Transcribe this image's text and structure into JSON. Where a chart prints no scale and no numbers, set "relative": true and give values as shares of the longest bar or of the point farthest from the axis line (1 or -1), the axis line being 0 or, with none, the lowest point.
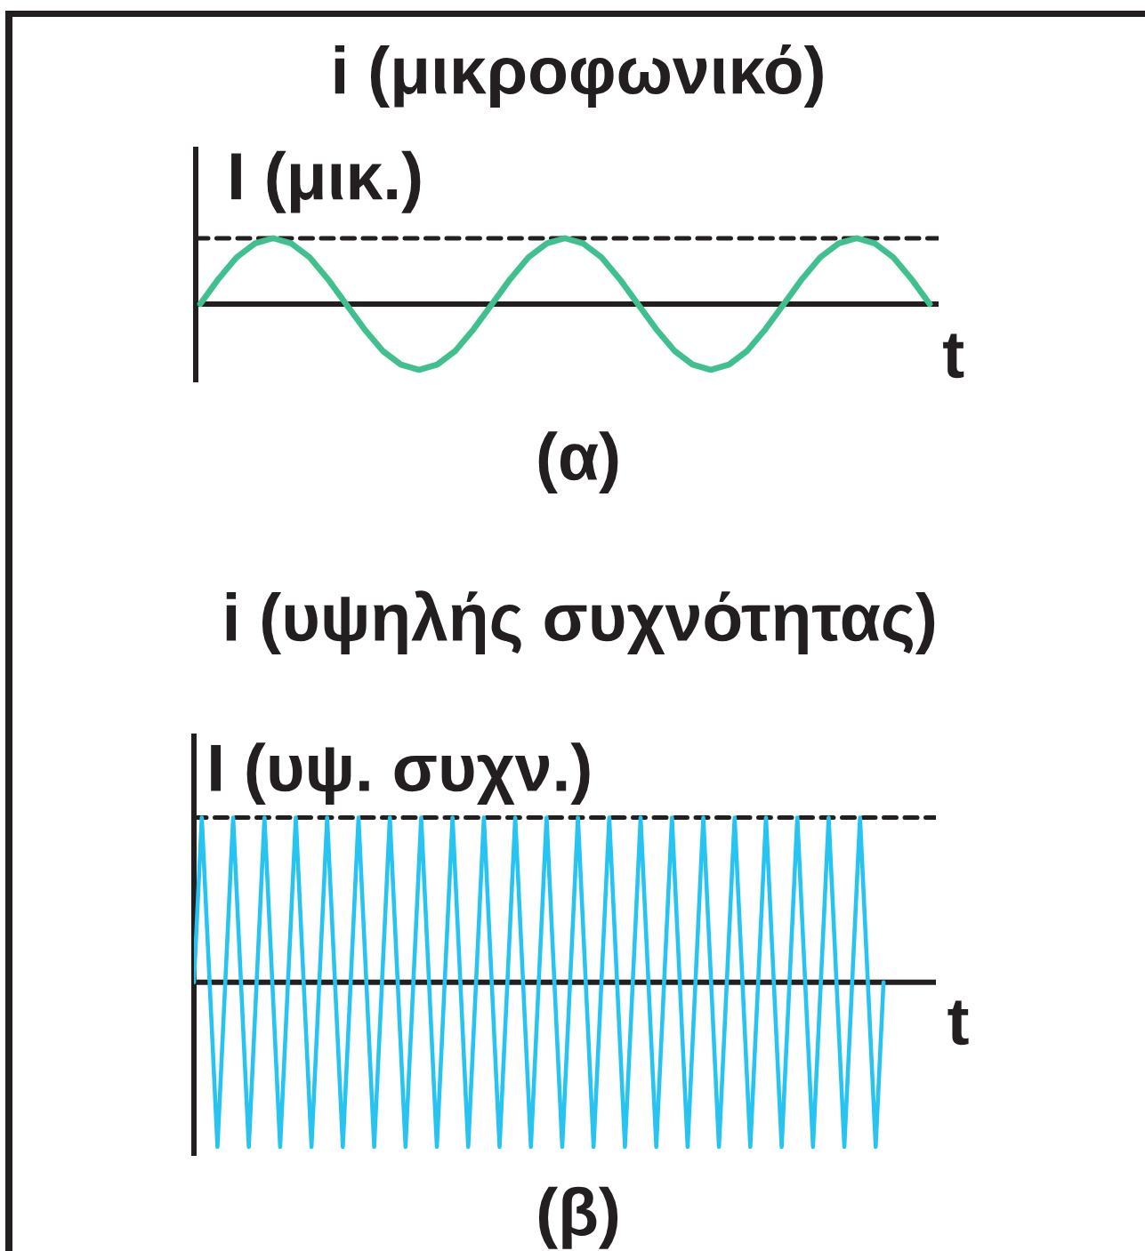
{
  "chart_data": [
    {
      "type": "line",
      "title": "i (μικροφωνικό)",
      "ylabel": "I (μικ.)",
      "xlabel": "t",
      "annotations": [
        "(α)"
      ],
      "relative": true,
      "categories": [
        null,
        null,
        null,
        null,
        null,
        null,
        null,
        null,
        null,
        null,
        null,
        null,
        null,
        null,
        null,
        null,
        null,
        null,
        null,
        null,
        null,
        null,
        null,
        null,
        null,
        null,
        null,
        null,
        null,
        null,
        null,
        null,
        null,
        null,
        null,
        null,
        null,
        null,
        null,
        null,
        null
      ],
      "series": [
        {
          "color": "#40bf8f",
          "values": [
            0,
            0.38,
            0.71,
            0.92,
            1,
            0.92,
            0.71,
            0.38,
            0,
            -0.38,
            -0.71,
            -0.92,
            -1,
            -0.92,
            -0.71,
            -0.38,
            0,
            0.38,
            0.71,
            0.92,
            1,
            0.92,
            0.71,
            0.38,
            0,
            -0.38,
            -0.71,
            -0.92,
            -1,
            -0.92,
            -0.71,
            -0.38,
            0,
            0.38,
            0.71,
            0.92,
            1,
            0.92,
            0.71,
            0.38,
            0
          ]
        }
      ],
      "ref_lines": [
        {
          "axis": "y",
          "value": 1,
          "color": "#231f20",
          "line_style": "dashed"
        }
      ]
    },
    {
      "type": "line",
      "title": "i (υψηλής συχνότητας)",
      "ylabel": "I (υψ. συχν.)",
      "xlabel": "t",
      "annotations": [
        "(β)"
      ],
      "relative": true,
      "categories": [
        null,
        null,
        null,
        null,
        null,
        null,
        null,
        null,
        null,
        null,
        null,
        null,
        null,
        null,
        null,
        null,
        null,
        null,
        null,
        null,
        null,
        null,
        null,
        null,
        null,
        null,
        null,
        null,
        null,
        null,
        null,
        null,
        null,
        null,
        null,
        null,
        null,
        null,
        null,
        null,
        null,
        null,
        null,
        null,
        null,
        null,
        null,
        null,
        null,
        null,
        null,
        null,
        null,
        null,
        null,
        null,
        null,
        null,
        null,
        null,
        null,
        null,
        null,
        null,
        null,
        null,
        null,
        null,
        null,
        null,
        null,
        null,
        null,
        null,
        null,
        null,
        null,
        null,
        null,
        null,
        null,
        null,
        null,
        null,
        null,
        null,
        null,
        null,
        null
      ],
      "series": [
        {
          "color": "#27c4f2",
          "values": [
            0,
            1,
            0,
            -1,
            0,
            1,
            0,
            -1,
            0,
            1,
            0,
            -1,
            0,
            1,
            0,
            -1,
            0,
            1,
            0,
            -1,
            0,
            1,
            0,
            -1,
            0,
            1,
            0,
            -1,
            0,
            1,
            0,
            -1,
            0,
            1,
            0,
            -1,
            0,
            1,
            0,
            -1,
            0,
            1,
            0,
            -1,
            0,
            1,
            0,
            -1,
            0,
            1,
            0,
            -1,
            0,
            1,
            0,
            -1,
            0,
            1,
            0,
            -1,
            0,
            1,
            0,
            -1,
            0,
            1,
            0,
            -1,
            0,
            1,
            0,
            -1,
            0,
            1,
            0,
            -1,
            0,
            1,
            0,
            -1,
            0,
            1,
            0,
            -1,
            0,
            1,
            0,
            -1,
            0
          ]
        }
      ],
      "ref_lines": [
        {
          "axis": "y",
          "value": 1,
          "color": "#231f20",
          "line_style": "dashed"
        }
      ]
    }
  ]
}
